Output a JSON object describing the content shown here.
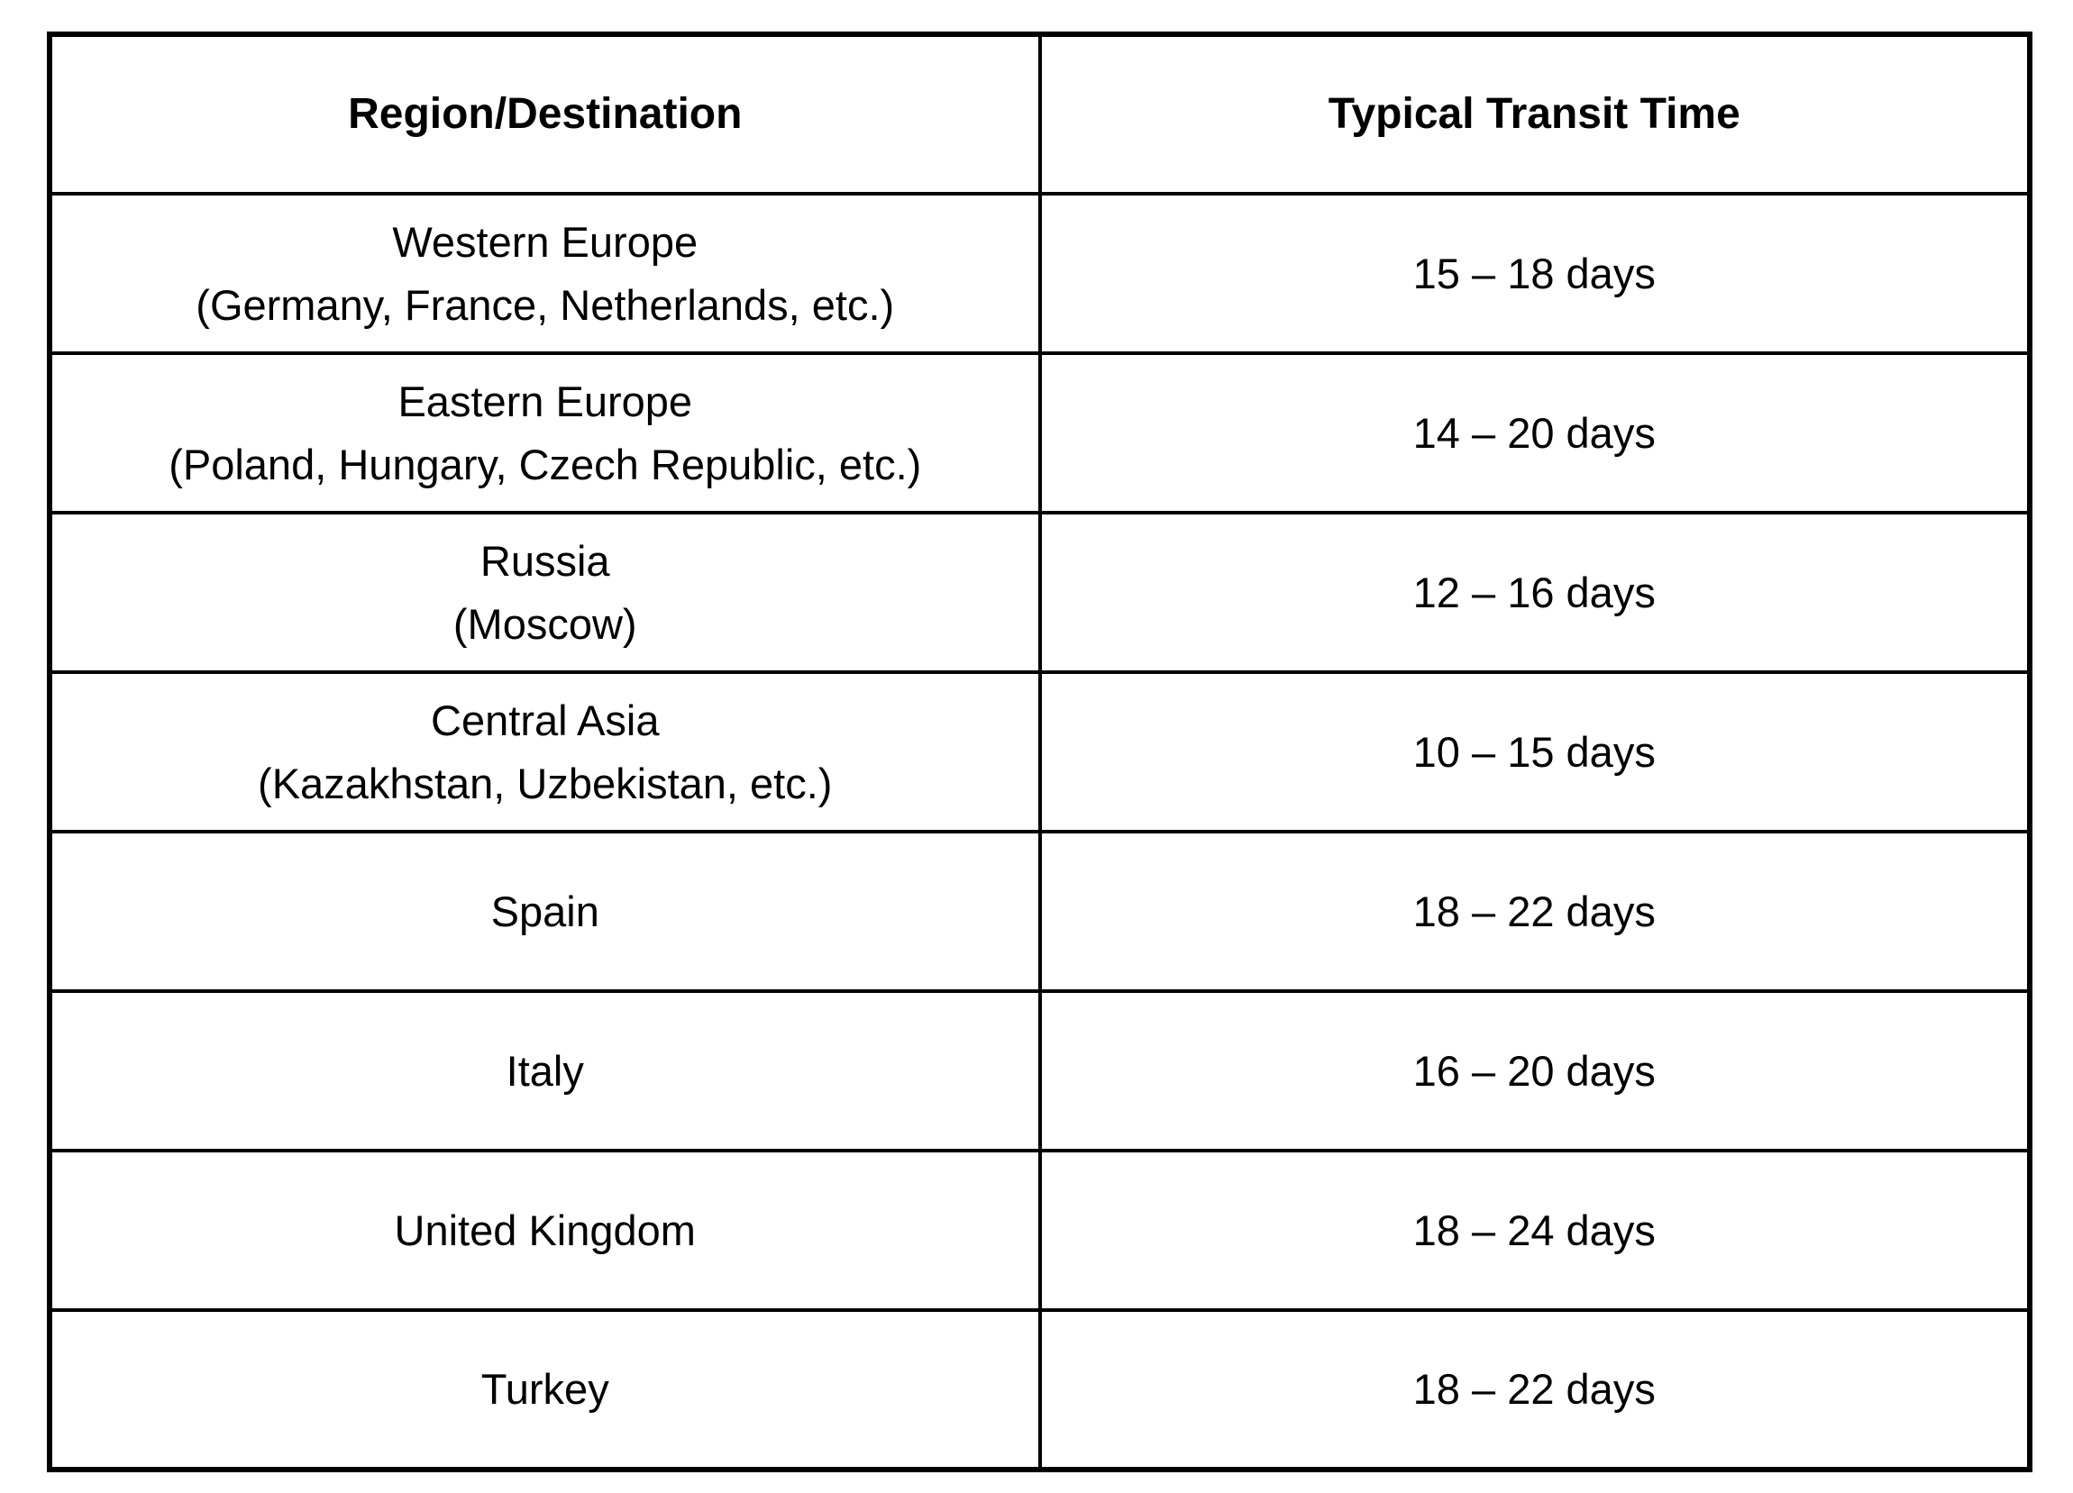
{
  "table": {
    "columns": [
      "Region/Destination",
      "Typical Transit Time"
    ],
    "rows": [
      {
        "region": "Western Europe",
        "detail": "(Germany, France, Netherlands, etc.)",
        "time": "15 – 18 days"
      },
      {
        "region": "Eastern Europe",
        "detail": "(Poland, Hungary, Czech Republic, etc.)",
        "time": "14 – 20 days"
      },
      {
        "region": "Russia",
        "detail": "(Moscow)",
        "time": "12 – 16 days"
      },
      {
        "region": "Central Asia",
        "detail": "(Kazakhstan, Uzbekistan, etc.)",
        "time": "10 – 15 days"
      },
      {
        "region": "Spain",
        "detail": "",
        "time": "18 – 22 days"
      },
      {
        "region": "Italy",
        "detail": "",
        "time": "16 – 20 days"
      },
      {
        "region": "United Kingdom",
        "detail": "",
        "time": "18 – 24 days"
      },
      {
        "region": "Turkey",
        "detail": "",
        "time": "18 – 22 days"
      }
    ],
    "colors": {
      "border": "#000000",
      "background": "#ffffff",
      "text": "#000000"
    }
  }
}
